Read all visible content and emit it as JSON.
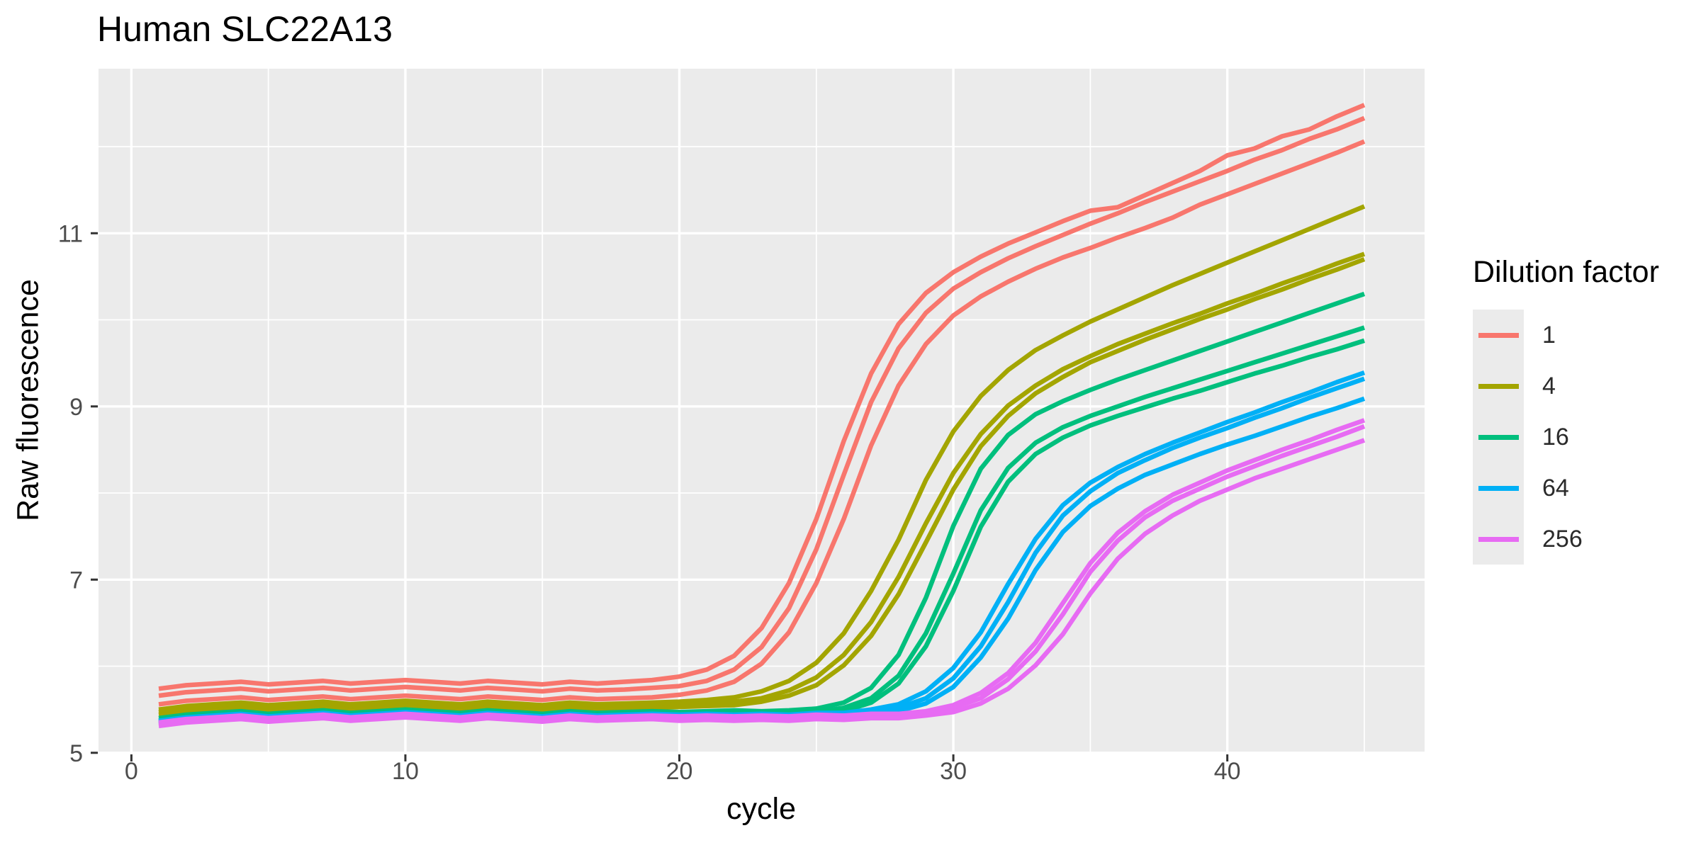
{
  "chart_data": {
    "type": "line",
    "title": "Human SLC22A13",
    "xlabel": "cycle",
    "ylabel": "Raw fluorescence",
    "grid": "on",
    "panel_background": "#EBEBEB",
    "grid_color": "#FFFFFF",
    "tick_color": "#333333",
    "tick_label_color": "#4D4D4D",
    "xlim": [
      -1.2,
      47.2
    ],
    "ylim": [
      4.99,
      12.9
    ],
    "x_major_ticks": {
      "values": [
        0,
        10,
        20,
        30,
        40
      ],
      "labels": [
        "0",
        "10",
        "20",
        "30",
        "40"
      ]
    },
    "y_major_ticks": {
      "values": [
        5,
        7,
        9,
        11
      ],
      "labels": [
        "5",
        "7",
        "9",
        "11"
      ]
    },
    "x_minor_gridlines": [
      5,
      15,
      25,
      35,
      45
    ],
    "y_minor_gridlines": [
      6,
      8,
      10,
      12
    ],
    "legend": {
      "title": "Dilution factor",
      "position": "right",
      "entries": [
        {
          "label": "1",
          "color": "#F8766D"
        },
        {
          "label": "4",
          "color": "#A3A500"
        },
        {
          "label": "16",
          "color": "#00BF7D"
        },
        {
          "label": "64",
          "color": "#00B0F6"
        },
        {
          "label": "256",
          "color": "#E76BF3"
        }
      ]
    },
    "x": [
      1,
      2,
      3,
      4,
      5,
      6,
      7,
      8,
      9,
      10,
      11,
      12,
      13,
      14,
      15,
      16,
      17,
      18,
      19,
      20,
      21,
      22,
      23,
      24,
      25,
      26,
      27,
      28,
      29,
      30,
      31,
      32,
      33,
      34,
      35,
      36,
      37,
      38,
      39,
      40,
      41,
      42,
      43,
      44,
      45
    ],
    "series": [
      {
        "name": "dilution-1-rep1",
        "dilution": "1",
        "color": "#F8766D",
        "values": [
          5.74,
          5.78,
          5.8,
          5.82,
          5.79,
          5.81,
          5.83,
          5.8,
          5.82,
          5.84,
          5.82,
          5.8,
          5.83,
          5.81,
          5.79,
          5.82,
          5.8,
          5.82,
          5.84,
          5.88,
          5.96,
          6.12,
          6.44,
          6.96,
          7.7,
          8.6,
          9.38,
          9.95,
          10.31,
          10.55,
          10.73,
          10.88,
          11.01,
          11.14,
          11.26,
          11.3,
          11.44,
          11.58,
          11.72,
          11.9,
          11.98,
          12.12,
          12.2,
          12.35,
          12.48
        ]
      },
      {
        "name": "dilution-1-rep2",
        "dilution": "1",
        "color": "#F8766D",
        "values": [
          5.66,
          5.7,
          5.72,
          5.74,
          5.71,
          5.73,
          5.75,
          5.72,
          5.74,
          5.76,
          5.74,
          5.72,
          5.75,
          5.73,
          5.71,
          5.74,
          5.72,
          5.73,
          5.75,
          5.77,
          5.83,
          5.96,
          6.22,
          6.67,
          7.35,
          8.21,
          9.05,
          9.67,
          10.08,
          10.36,
          10.55,
          10.71,
          10.85,
          10.98,
          11.11,
          11.23,
          11.36,
          11.48,
          11.6,
          11.72,
          11.85,
          11.96,
          12.09,
          12.2,
          12.33
        ]
      },
      {
        "name": "dilution-1-rep3",
        "dilution": "1",
        "color": "#F8766D",
        "values": [
          5.56,
          5.6,
          5.62,
          5.64,
          5.61,
          5.63,
          5.65,
          5.62,
          5.64,
          5.66,
          5.64,
          5.62,
          5.65,
          5.63,
          5.61,
          5.64,
          5.62,
          5.63,
          5.64,
          5.67,
          5.72,
          5.82,
          6.03,
          6.39,
          6.96,
          7.7,
          8.55,
          9.24,
          9.72,
          10.05,
          10.27,
          10.44,
          10.59,
          10.72,
          10.83,
          10.95,
          11.06,
          11.18,
          11.33,
          11.45,
          11.57,
          11.69,
          11.81,
          11.93,
          12.06
        ]
      },
      {
        "name": "dilution-4-rep1",
        "dilution": "4",
        "color": "#A3A500",
        "values": [
          5.5,
          5.54,
          5.56,
          5.58,
          5.55,
          5.57,
          5.59,
          5.56,
          5.58,
          5.6,
          5.58,
          5.56,
          5.59,
          5.57,
          5.55,
          5.58,
          5.56,
          5.57,
          5.58,
          5.59,
          5.61,
          5.64,
          5.71,
          5.83,
          6.04,
          6.38,
          6.87,
          7.46,
          8.15,
          8.71,
          9.12,
          9.42,
          9.65,
          9.82,
          9.98,
          10.12,
          10.26,
          10.4,
          10.53,
          10.66,
          10.79,
          10.92,
          11.05,
          11.18,
          11.31
        ]
      },
      {
        "name": "dilution-4-rep2",
        "dilution": "4",
        "color": "#A3A500",
        "values": [
          5.47,
          5.51,
          5.53,
          5.55,
          5.52,
          5.54,
          5.56,
          5.53,
          5.55,
          5.57,
          5.55,
          5.53,
          5.56,
          5.54,
          5.52,
          5.55,
          5.53,
          5.55,
          5.55,
          5.56,
          5.57,
          5.59,
          5.63,
          5.72,
          5.87,
          6.13,
          6.51,
          7.03,
          7.65,
          8.23,
          8.68,
          9.01,
          9.24,
          9.43,
          9.58,
          9.72,
          9.84,
          9.96,
          10.07,
          10.19,
          10.3,
          10.42,
          10.53,
          10.65,
          10.76
        ]
      },
      {
        "name": "dilution-4-rep3",
        "dilution": "4",
        "color": "#A3A500",
        "values": [
          5.44,
          5.48,
          5.5,
          5.52,
          5.49,
          5.51,
          5.53,
          5.5,
          5.52,
          5.54,
          5.52,
          5.5,
          5.53,
          5.51,
          5.49,
          5.52,
          5.5,
          5.52,
          5.52,
          5.53,
          5.54,
          5.55,
          5.59,
          5.66,
          5.78,
          6.01,
          6.35,
          6.83,
          7.43,
          8.04,
          8.54,
          8.89,
          9.15,
          9.34,
          9.51,
          9.64,
          9.77,
          9.89,
          10.01,
          10.12,
          10.24,
          10.35,
          10.47,
          10.58,
          10.7
        ]
      },
      {
        "name": "dilution-16-rep1",
        "dilution": "16",
        "color": "#00BF7D",
        "values": [
          5.4,
          5.44,
          5.46,
          5.48,
          5.45,
          5.47,
          5.49,
          5.46,
          5.48,
          5.5,
          5.48,
          5.46,
          5.49,
          5.47,
          5.45,
          5.48,
          5.46,
          5.47,
          5.48,
          5.47,
          5.48,
          5.49,
          5.48,
          5.49,
          5.51,
          5.58,
          5.75,
          6.13,
          6.79,
          7.62,
          8.28,
          8.67,
          8.91,
          9.06,
          9.19,
          9.31,
          9.42,
          9.53,
          9.64,
          9.75,
          9.86,
          9.97,
          10.08,
          10.19,
          10.3
        ]
      },
      {
        "name": "dilution-16-rep2",
        "dilution": "16",
        "color": "#00BF7D",
        "values": [
          5.37,
          5.41,
          5.43,
          5.45,
          5.42,
          5.44,
          5.46,
          5.43,
          5.45,
          5.47,
          5.45,
          5.43,
          5.46,
          5.44,
          5.42,
          5.45,
          5.43,
          5.44,
          5.45,
          5.44,
          5.45,
          5.46,
          5.45,
          5.45,
          5.47,
          5.52,
          5.63,
          5.89,
          6.38,
          7.07,
          7.8,
          8.29,
          8.58,
          8.76,
          8.89,
          9.0,
          9.11,
          9.21,
          9.31,
          9.41,
          9.51,
          9.61,
          9.71,
          9.81,
          9.91
        ]
      },
      {
        "name": "dilution-16-rep3",
        "dilution": "16",
        "color": "#00BF7D",
        "values": [
          5.35,
          5.39,
          5.41,
          5.43,
          5.4,
          5.42,
          5.44,
          5.41,
          5.43,
          5.45,
          5.43,
          5.41,
          5.44,
          5.42,
          5.4,
          5.43,
          5.41,
          5.42,
          5.43,
          5.42,
          5.43,
          5.44,
          5.43,
          5.43,
          5.45,
          5.48,
          5.58,
          5.8,
          6.23,
          6.87,
          7.61,
          8.13,
          8.45,
          8.64,
          8.78,
          8.89,
          8.99,
          9.09,
          9.18,
          9.28,
          9.38,
          9.47,
          9.57,
          9.66,
          9.76
        ]
      },
      {
        "name": "dilution-64-rep1",
        "dilution": "64",
        "color": "#00B0F6",
        "values": [
          5.37,
          5.41,
          5.43,
          5.45,
          5.42,
          5.44,
          5.46,
          5.43,
          5.45,
          5.47,
          5.45,
          5.43,
          5.46,
          5.44,
          5.42,
          5.45,
          5.43,
          5.44,
          5.45,
          5.44,
          5.45,
          5.44,
          5.45,
          5.44,
          5.46,
          5.46,
          5.5,
          5.56,
          5.71,
          5.98,
          6.39,
          6.95,
          7.47,
          7.86,
          8.12,
          8.3,
          8.45,
          8.58,
          8.7,
          8.82,
          8.93,
          9.05,
          9.16,
          9.28,
          9.39
        ]
      },
      {
        "name": "dilution-64-rep2",
        "dilution": "64",
        "color": "#00B0F6",
        "values": [
          5.35,
          5.39,
          5.41,
          5.43,
          5.4,
          5.42,
          5.44,
          5.41,
          5.43,
          5.45,
          5.43,
          5.41,
          5.44,
          5.42,
          5.4,
          5.43,
          5.41,
          5.42,
          5.43,
          5.42,
          5.43,
          5.42,
          5.43,
          5.42,
          5.44,
          5.44,
          5.46,
          5.52,
          5.63,
          5.86,
          6.23,
          6.74,
          7.31,
          7.74,
          8.02,
          8.23,
          8.38,
          8.52,
          8.64,
          8.75,
          8.87,
          8.98,
          9.1,
          9.21,
          9.32
        ]
      },
      {
        "name": "dilution-64-rep3",
        "dilution": "64",
        "color": "#00B0F6",
        "values": [
          5.33,
          5.37,
          5.39,
          5.41,
          5.38,
          5.4,
          5.42,
          5.39,
          5.41,
          5.43,
          5.41,
          5.39,
          5.42,
          5.4,
          5.38,
          5.41,
          5.39,
          5.4,
          5.41,
          5.4,
          5.41,
          5.4,
          5.41,
          5.4,
          5.42,
          5.42,
          5.43,
          5.48,
          5.57,
          5.76,
          6.1,
          6.55,
          7.11,
          7.55,
          7.85,
          8.05,
          8.21,
          8.33,
          8.45,
          8.56,
          8.66,
          8.77,
          8.88,
          8.98,
          9.09
        ]
      },
      {
        "name": "dilution-256-rep1",
        "dilution": "256",
        "color": "#E76BF3",
        "values": [
          5.35,
          5.39,
          5.41,
          5.43,
          5.4,
          5.42,
          5.44,
          5.41,
          5.43,
          5.45,
          5.43,
          5.41,
          5.44,
          5.42,
          5.4,
          5.43,
          5.41,
          5.42,
          5.43,
          5.42,
          5.43,
          5.42,
          5.43,
          5.42,
          5.44,
          5.43,
          5.45,
          5.45,
          5.48,
          5.55,
          5.69,
          5.92,
          6.27,
          6.73,
          7.19,
          7.54,
          7.79,
          7.98,
          8.12,
          8.26,
          8.38,
          8.5,
          8.61,
          8.73,
          8.84
        ]
      },
      {
        "name": "dilution-256-rep2",
        "dilution": "256",
        "color": "#E76BF3",
        "values": [
          5.33,
          5.37,
          5.39,
          5.41,
          5.38,
          5.4,
          5.42,
          5.39,
          5.41,
          5.43,
          5.41,
          5.39,
          5.42,
          5.4,
          5.38,
          5.41,
          5.39,
          5.4,
          5.41,
          5.4,
          5.41,
          5.4,
          5.41,
          5.4,
          5.42,
          5.41,
          5.43,
          5.43,
          5.45,
          5.52,
          5.63,
          5.85,
          6.17,
          6.6,
          7.09,
          7.45,
          7.72,
          7.91,
          8.05,
          8.19,
          8.31,
          8.43,
          8.54,
          8.65,
          8.77
        ]
      },
      {
        "name": "dilution-256-rep3",
        "dilution": "256",
        "color": "#E76BF3",
        "values": [
          5.31,
          5.35,
          5.37,
          5.39,
          5.36,
          5.38,
          5.4,
          5.37,
          5.39,
          5.41,
          5.39,
          5.37,
          5.4,
          5.38,
          5.36,
          5.39,
          5.37,
          5.38,
          5.39,
          5.37,
          5.38,
          5.37,
          5.38,
          5.37,
          5.39,
          5.38,
          5.4,
          5.4,
          5.43,
          5.47,
          5.57,
          5.74,
          6.01,
          6.37,
          6.84,
          7.24,
          7.53,
          7.74,
          7.91,
          8.04,
          8.17,
          8.28,
          8.39,
          8.5,
          8.61
        ]
      }
    ]
  }
}
